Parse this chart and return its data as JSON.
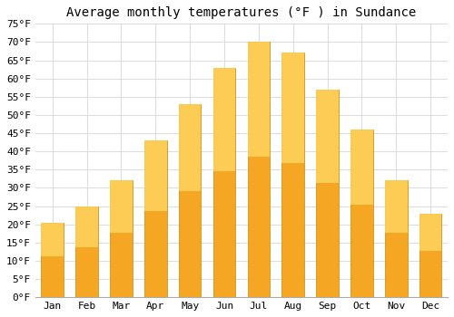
{
  "title": "Average monthly temperatures (°F ) in Sundance",
  "months": [
    "Jan",
    "Feb",
    "Mar",
    "Apr",
    "May",
    "Jun",
    "Jul",
    "Aug",
    "Sep",
    "Oct",
    "Nov",
    "Dec"
  ],
  "values": [
    20.5,
    25.0,
    32.0,
    43.0,
    53.0,
    63.0,
    70.0,
    67.0,
    57.0,
    46.0,
    32.0,
    23.0
  ],
  "bar_color_bottom": "#F5A623",
  "bar_color_top": "#FFD966",
  "ylim": [
    0,
    75
  ],
  "yticks": [
    0,
    5,
    10,
    15,
    20,
    25,
    30,
    35,
    40,
    45,
    50,
    55,
    60,
    65,
    70,
    75
  ],
  "ytick_labels": [
    "0°F",
    "5°F",
    "10°F",
    "15°F",
    "20°F",
    "25°F",
    "30°F",
    "35°F",
    "40°F",
    "45°F",
    "50°F",
    "55°F",
    "60°F",
    "65°F",
    "70°F",
    "75°F"
  ],
  "bg_color": "#ffffff",
  "plot_bg_color": "#ffffff",
  "grid_color": "#dddddd",
  "title_fontsize": 10,
  "tick_fontsize": 8,
  "bar_edge_color": "#CC8800",
  "font_family": "monospace"
}
